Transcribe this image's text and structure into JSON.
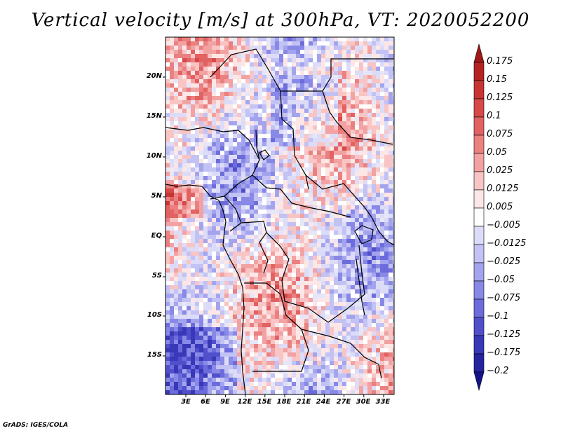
{
  "title": "Vertical velocity [m/s] at 300hPa, VT: 2020052200",
  "footer": "GrADS: IGES/COLA",
  "map": {
    "variable": "Vertical velocity",
    "units": "m/s",
    "level": "300hPa",
    "valid_time": "2020052200",
    "lat_labels": [
      "20N",
      "15N",
      "10N",
      "5N",
      "EQ",
      "5S",
      "10S",
      "15S"
    ],
    "lon_labels": [
      "3E",
      "6E",
      "9E",
      "12E",
      "15E",
      "18E",
      "21E",
      "24E",
      "27E",
      "30E",
      "33E"
    ]
  },
  "colorbar": {
    "labels": [
      "0.175",
      "0.15",
      "0.125",
      "0.1",
      "0.075",
      "0.05",
      "0.025",
      "0.0125",
      "0.005",
      "−0.005",
      "−0.0125",
      "−0.025",
      "−0.05",
      "−0.075",
      "−0.1",
      "−0.125",
      "−0.175",
      "−0.2"
    ],
    "colors": [
      "#a01818",
      "#b52323",
      "#c83434",
      "#d74848",
      "#e26262",
      "#ea8080",
      "#f2a2a2",
      "#f8c4c4",
      "#fde6e6",
      "#ffffff",
      "#dcdcf8",
      "#c2c2f4",
      "#a4a4ee",
      "#8888e6",
      "#6c6cdc",
      "#5050cc",
      "#3838b8",
      "#2424a0",
      "#14148a"
    ]
  }
}
